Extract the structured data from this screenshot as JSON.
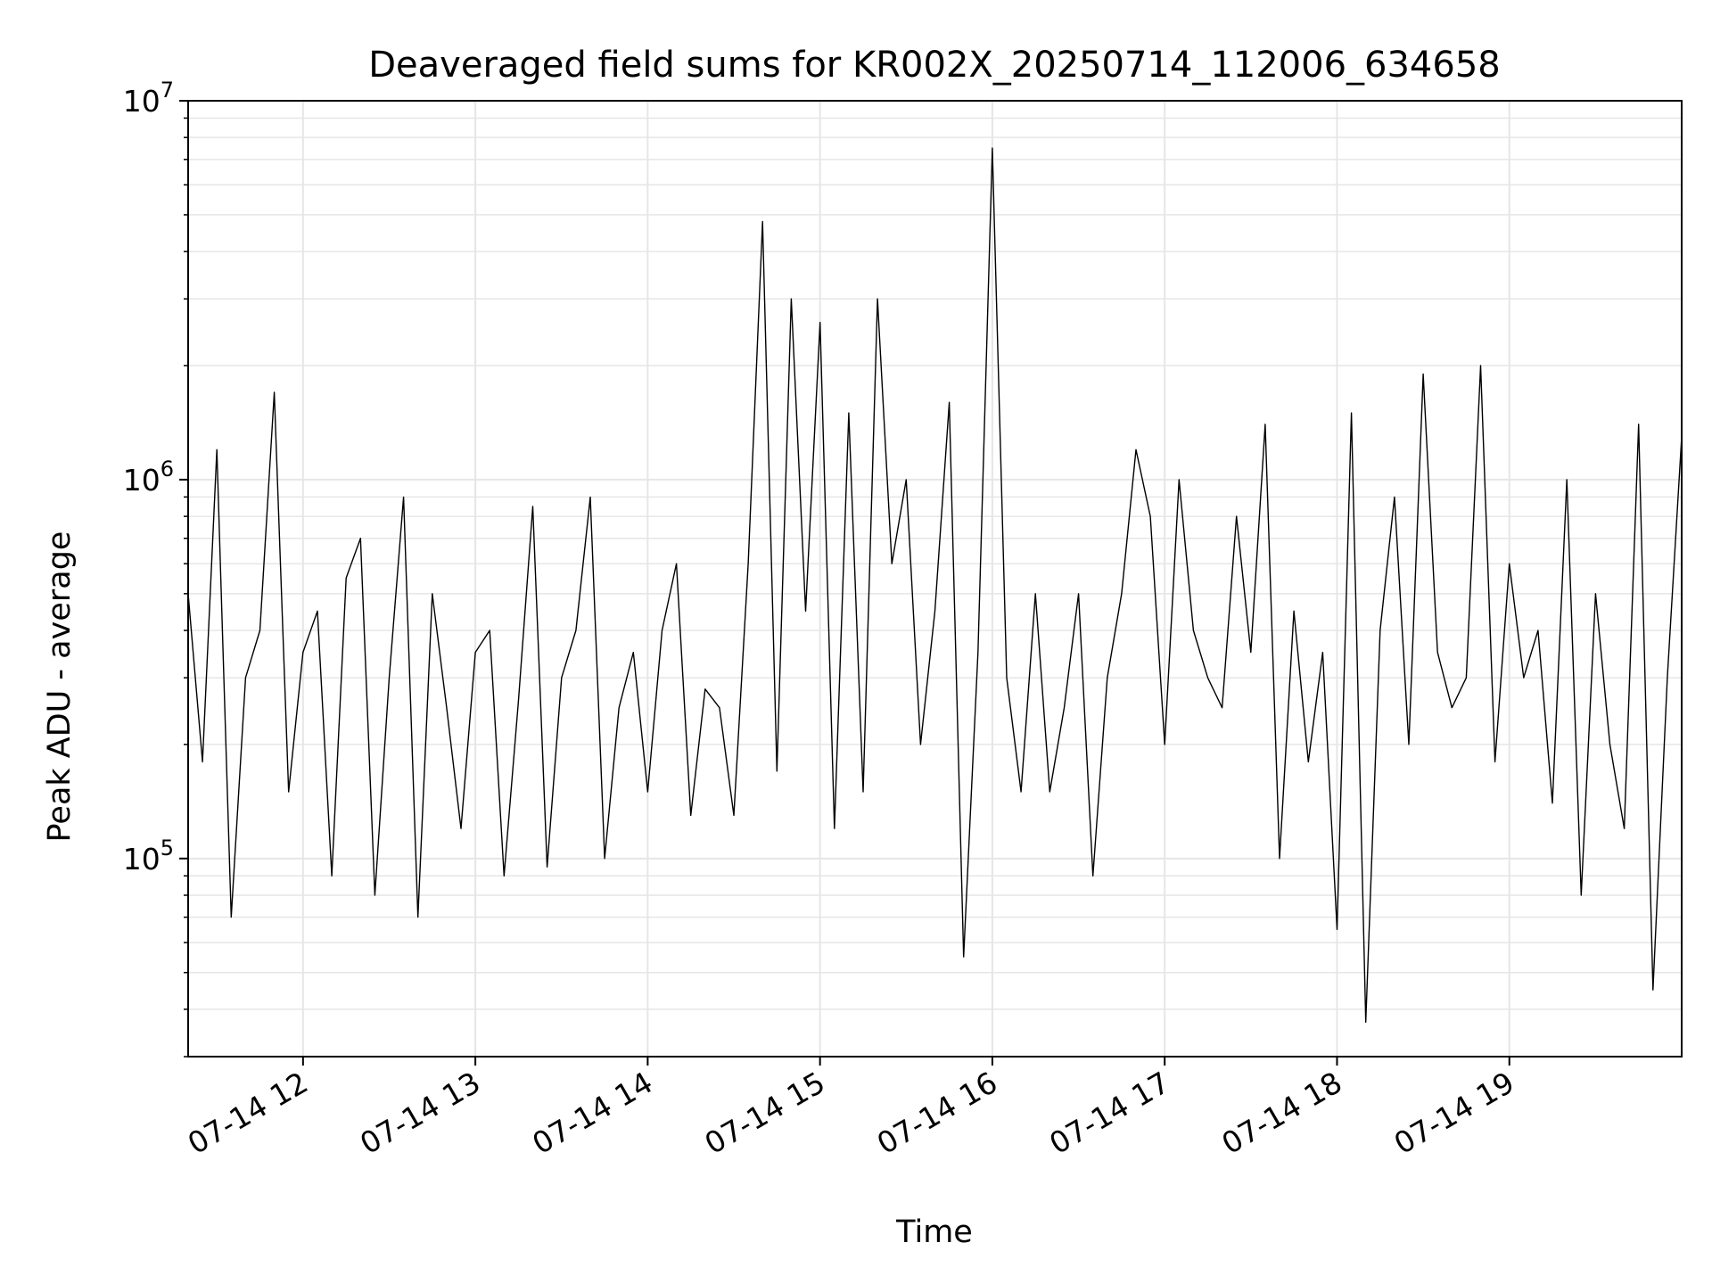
{
  "chart_data": {
    "type": "line",
    "title": "Deaveraged field sums for KR002X_20250714_112006_634658",
    "xlabel": "Time",
    "ylabel": "Peak ADU - average",
    "yscale": "log",
    "ylim": [
      30000,
      10000000
    ],
    "xlim": [
      "2025-07-14 11:20",
      "2025-07-14 20:00"
    ],
    "grid": true,
    "line_color": "#000000",
    "x_ticks": [
      {
        "value": "2025-07-14 12:00",
        "label": "07-14 12"
      },
      {
        "value": "2025-07-14 13:00",
        "label": "07-14 13"
      },
      {
        "value": "2025-07-14 14:00",
        "label": "07-14 14"
      },
      {
        "value": "2025-07-14 15:00",
        "label": "07-14 15"
      },
      {
        "value": "2025-07-14 16:00",
        "label": "07-14 16"
      },
      {
        "value": "2025-07-14 17:00",
        "label": "07-14 17"
      },
      {
        "value": "2025-07-14 18:00",
        "label": "07-14 18"
      },
      {
        "value": "2025-07-14 19:00",
        "label": "07-14 19"
      }
    ],
    "y_ticks": [
      {
        "value": 100000,
        "base": "10",
        "exp": "5"
      },
      {
        "value": 1000000,
        "base": "10",
        "exp": "6"
      },
      {
        "value": 10000000,
        "base": "10",
        "exp": "7"
      }
    ],
    "series": [
      {
        "x": [
          "2025-07-14 11:20",
          "2025-07-14 11:25",
          "2025-07-14 11:30",
          "2025-07-14 11:35",
          "2025-07-14 11:40",
          "2025-07-14 11:45",
          "2025-07-14 11:50",
          "2025-07-14 11:55",
          "2025-07-14 12:00",
          "2025-07-14 12:05",
          "2025-07-14 12:10",
          "2025-07-14 12:15",
          "2025-07-14 12:20",
          "2025-07-14 12:25",
          "2025-07-14 12:30",
          "2025-07-14 12:35",
          "2025-07-14 12:40",
          "2025-07-14 12:45",
          "2025-07-14 12:50",
          "2025-07-14 12:55",
          "2025-07-14 13:00",
          "2025-07-14 13:05",
          "2025-07-14 13:10",
          "2025-07-14 13:15",
          "2025-07-14 13:20",
          "2025-07-14 13:25",
          "2025-07-14 13:30",
          "2025-07-14 13:35",
          "2025-07-14 13:40",
          "2025-07-14 13:45",
          "2025-07-14 13:50",
          "2025-07-14 13:55",
          "2025-07-14 14:00",
          "2025-07-14 14:05",
          "2025-07-14 14:10",
          "2025-07-14 14:15",
          "2025-07-14 14:20",
          "2025-07-14 14:25",
          "2025-07-14 14:30",
          "2025-07-14 14:35",
          "2025-07-14 14:40",
          "2025-07-14 14:45",
          "2025-07-14 14:50",
          "2025-07-14 14:55",
          "2025-07-14 15:00",
          "2025-07-14 15:05",
          "2025-07-14 15:10",
          "2025-07-14 15:15",
          "2025-07-14 15:20",
          "2025-07-14 15:25",
          "2025-07-14 15:30",
          "2025-07-14 15:35",
          "2025-07-14 15:40",
          "2025-07-14 15:45",
          "2025-07-14 15:50",
          "2025-07-14 15:55",
          "2025-07-14 16:00",
          "2025-07-14 16:05",
          "2025-07-14 16:10",
          "2025-07-14 16:15",
          "2025-07-14 16:20",
          "2025-07-14 16:25",
          "2025-07-14 16:30",
          "2025-07-14 16:35",
          "2025-07-14 16:40",
          "2025-07-14 16:45",
          "2025-07-14 16:50",
          "2025-07-14 16:55",
          "2025-07-14 17:00",
          "2025-07-14 17:05",
          "2025-07-14 17:10",
          "2025-07-14 17:15",
          "2025-07-14 17:20",
          "2025-07-14 17:25",
          "2025-07-14 17:30",
          "2025-07-14 17:35",
          "2025-07-14 17:40",
          "2025-07-14 17:45",
          "2025-07-14 17:50",
          "2025-07-14 17:55",
          "2025-07-14 18:00",
          "2025-07-14 18:05",
          "2025-07-14 18:10",
          "2025-07-14 18:15",
          "2025-07-14 18:20",
          "2025-07-14 18:25",
          "2025-07-14 18:30",
          "2025-07-14 18:35",
          "2025-07-14 18:40",
          "2025-07-14 18:45",
          "2025-07-14 18:50",
          "2025-07-14 18:55",
          "2025-07-14 19:00",
          "2025-07-14 19:05",
          "2025-07-14 19:10",
          "2025-07-14 19:15",
          "2025-07-14 19:20",
          "2025-07-14 19:25",
          "2025-07-14 19:30",
          "2025-07-14 19:35",
          "2025-07-14 19:40",
          "2025-07-14 19:45",
          "2025-07-14 19:50",
          "2025-07-14 19:55",
          "2025-07-14 20:00"
        ],
        "y": [
          500000,
          180000,
          1200000,
          70000,
          300000,
          400000,
          1700000,
          150000,
          350000,
          450000,
          90000,
          550000,
          700000,
          80000,
          300000,
          900000,
          70000,
          500000,
          250000,
          120000,
          350000,
          400000,
          90000,
          260000,
          850000,
          95000,
          300000,
          400000,
          900000,
          100000,
          250000,
          350000,
          150000,
          400000,
          600000,
          130000,
          280000,
          250000,
          130000,
          600000,
          4800000,
          170000,
          3000000,
          450000,
          2600000,
          120000,
          1500000,
          150000,
          3000000,
          600000,
          1000000,
          200000,
          450000,
          1600000,
          55000,
          350000,
          7500000,
          300000,
          150000,
          500000,
          150000,
          250000,
          500000,
          90000,
          300000,
          500000,
          1200000,
          800000,
          200000,
          1000000,
          400000,
          300000,
          250000,
          800000,
          350000,
          1400000,
          100000,
          450000,
          180000,
          350000,
          65000,
          1500000,
          37000,
          400000,
          900000,
          200000,
          1900000,
          350000,
          250000,
          300000,
          2000000,
          180000,
          600000,
          300000,
          400000,
          140000,
          1000000,
          80000,
          500000,
          200000,
          120000,
          1400000,
          45000,
          300000,
          1300000
        ]
      }
    ]
  }
}
